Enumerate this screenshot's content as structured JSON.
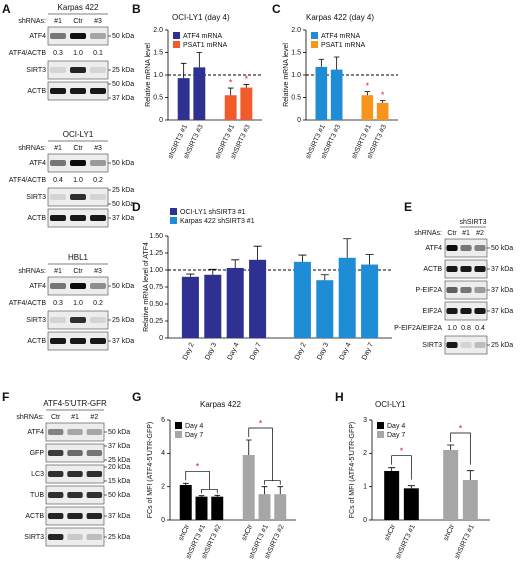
{
  "panel_labels": [
    "A",
    "B",
    "C",
    "D",
    "E",
    "F",
    "G",
    "H"
  ],
  "chart_data": [
    {
      "type": "bar",
      "title": "OCI-LY1 (day 4)",
      "y_label": "Relative mRNA level",
      "categories": [
        "shSIRT3 #1",
        "shSIRT3 #3"
      ],
      "series": [
        {
          "name": "ATF4 mRNA",
          "color": "#2e3192",
          "values": [
            0.93,
            1.17
          ],
          "errors": [
            0.33,
            0.33
          ]
        },
        {
          "name": "PSAT1 mRNA",
          "color": "#f15a29",
          "values": [
            0.55,
            0.72
          ],
          "errors": [
            0.16,
            0.07
          ],
          "annotations": [
            "*",
            "*"
          ]
        }
      ],
      "ylim": [
        0,
        2
      ],
      "yticks": [
        0,
        0.5,
        {
          "value": 1,
          "label": "1.0"
        },
        1.5,
        {
          "value": 2,
          "label": "2.0"
        }
      ],
      "reference_line": 1,
      "legend": "upper left"
    },
    {
      "type": "bar",
      "title": "Karpas 422 (day 4)",
      "y_label": "Relative mRNA level",
      "categories": [
        "shSIRT3 #1",
        "shSIRT3 #3"
      ],
      "series": [
        {
          "name": "ATF4 mRNA",
          "color": "#1f8dd6",
          "values": [
            1.18,
            1.12
          ],
          "errors": [
            0.17,
            0.28
          ]
        },
        {
          "name": "PSAT1 mRNA",
          "color": "#f7941d",
          "values": [
            0.55,
            0.38
          ],
          "errors": [
            0.08,
            0.05
          ],
          "annotations": [
            "*",
            "*"
          ]
        }
      ],
      "ylim": [
        0,
        2
      ],
      "yticks": [
        0,
        0.5,
        {
          "value": 1,
          "label": "1.0"
        },
        1.5,
        {
          "value": 2,
          "label": "2.0"
        }
      ],
      "reference_line": 1,
      "legend": "upper left"
    },
    {
      "type": "bar",
      "y_label": "Relative mRNA level of ATF4",
      "categories": [
        "Day 2",
        "Day 3",
        "Day 4",
        "Day 7"
      ],
      "series": [
        {
          "name": "OCI-LY1 shSIRT3 #1",
          "color": "#2e3192",
          "values": [
            0.9,
            0.93,
            1.03,
            1.15
          ],
          "errors": [
            0.04,
            0.08,
            0.12,
            0.2
          ]
        },
        {
          "name": "Karpas 422 shSIRT3 #1",
          "color": "#1f8dd6",
          "values": [
            1.12,
            0.85,
            1.18,
            1.08
          ],
          "errors": [
            0.1,
            0.08,
            0.28,
            0.15
          ]
        }
      ],
      "ylim": [
        0,
        1.5
      ],
      "yticks": [
        0,
        0.25,
        {
          "value": 0.5,
          "label": "0.50"
        },
        0.75,
        {
          "value": 1,
          "label": "1.00"
        },
        1.25,
        {
          "value": 1.5,
          "label": "1.50"
        }
      ],
      "reference_line": 1,
      "legend": "above"
    },
    {
      "type": "bar",
      "title": "Karpas 422",
      "y_label": "FCs of MFI (ATF4-5'UTR-GFP)",
      "categories": [
        "shCtr",
        "shSIRT3 #1",
        "shSIRT3 #2"
      ],
      "series": [
        {
          "name": "Day 4",
          "color": "#000000",
          "values": [
            2.1,
            1.4,
            1.4
          ],
          "errors": [
            0.1,
            0.06,
            0.08
          ],
          "bracket": "*"
        },
        {
          "name": "Day 7",
          "color": "#a6a6a6",
          "values": [
            3.9,
            1.55,
            1.55
          ],
          "errors": [
            0.9,
            0.45,
            0.45
          ],
          "bracket": "*"
        }
      ],
      "ylim": [
        0,
        6
      ],
      "yticks": [
        0,
        2,
        4,
        6
      ],
      "legend": "upper left"
    },
    {
      "type": "bar",
      "title": "OCI-LY1",
      "y_label": "FCs of MFI (ATF4-5'UTR-GFP)",
      "categories": [
        "shCtr",
        "shSIRT3 #1"
      ],
      "series": [
        {
          "name": "Day 4",
          "color": "#000000",
          "values": [
            1.47,
            0.95
          ],
          "errors": [
            0.1,
            0.08
          ],
          "bracket": "*"
        },
        {
          "name": "Day 7",
          "color": "#a6a6a6",
          "values": [
            2.1,
            1.2
          ],
          "errors": [
            0.15,
            0.28
          ],
          "bracket": "*"
        }
      ],
      "ylim": [
        0,
        3
      ],
      "yticks": [
        0,
        1,
        2,
        3
      ],
      "legend": "upper left"
    }
  ],
  "blots": [
    {
      "title": "Karpas 422",
      "lane_header": "shRNAs:",
      "lanes": [
        "#1",
        "Ctr",
        "#3"
      ],
      "rows": [
        {
          "label": "ATF4",
          "markers": [
            "50 kDa"
          ],
          "bands": [
            0.5,
            0.95,
            0.3
          ]
        },
        {
          "label": "ATF4/ACTB",
          "ratios": [
            "0.3",
            "1.0",
            "0.1"
          ]
        },
        {
          "label": "SIRT3",
          "markers": [
            "25 kDa"
          ],
          "bands": [
            0.1,
            0.85,
            0.1
          ]
        },
        {
          "label": "ACTB",
          "markers": [
            "50 kDa",
            "37 kDa"
          ],
          "bands": [
            0.9,
            0.9,
            0.9
          ]
        }
      ]
    },
    {
      "title": "OCI-LY1",
      "lane_header": "shRNAs:",
      "lanes": [
        "#1",
        "Ctr",
        "#3"
      ],
      "rows": [
        {
          "label": "ATF4",
          "markers": [
            "50 kDa"
          ],
          "bands": [
            0.5,
            0.95,
            0.35
          ]
        },
        {
          "label": "ATF4/ACTB",
          "ratios": [
            "0.4",
            "1.0",
            "0.2"
          ]
        },
        {
          "label": "SIRT3",
          "markers": [
            "25 kDa",
            "50 kDa"
          ],
          "bands": [
            0.1,
            0.8,
            0.1
          ]
        },
        {
          "label": "ACTB",
          "markers": [
            "37 kDa"
          ],
          "bands": [
            0.9,
            0.9,
            0.9
          ]
        }
      ]
    },
    {
      "title": "HBL1",
      "lane_header": "shRNAs:",
      "lanes": [
        "#1",
        "Ctr",
        "#3"
      ],
      "rows": [
        {
          "label": "ATF4",
          "markers": [
            "50 kDa"
          ],
          "bands": [
            0.5,
            0.95,
            0.4
          ]
        },
        {
          "label": "ATF4/ACTB",
          "ratios": [
            "0.3",
            "1.0",
            "0.2"
          ]
        },
        {
          "label": "SIRT3",
          "markers": [
            "25 kDa"
          ],
          "bands": [
            0.1,
            0.8,
            0.1
          ]
        },
        {
          "label": "ACTB",
          "markers": [
            "37 kDa"
          ],
          "bands": [
            0.9,
            0.9,
            0.9
          ]
        }
      ]
    },
    {
      "group_label": "shSIRT3",
      "lane_header": "shRNAs:",
      "lanes": [
        "Ctr",
        "#1",
        "#2"
      ],
      "rows": [
        {
          "label": "ATF4",
          "markers": [
            "50 kDa"
          ],
          "bands": [
            0.95,
            0.5,
            0.45
          ]
        },
        {
          "label": "ACTB",
          "markers": [
            "37 kDa"
          ],
          "bands": [
            0.9,
            0.9,
            0.9
          ]
        },
        {
          "label": "P-EIF2A",
          "markers": [
            "37 kDa"
          ],
          "bands": [
            0.6,
            0.5,
            0.35
          ]
        },
        {
          "label": "EIF2A",
          "markers": [
            "37 kDa"
          ],
          "bands": [
            0.9,
            0.9,
            0.9
          ]
        },
        {
          "label": "P-EIF2A/EIF2A",
          "ratios": [
            "1.0",
            "0.8",
            "0.4"
          ]
        },
        {
          "label": "SIRT3",
          "markers": [
            "25 kDa"
          ],
          "bands": [
            0.9,
            0.1,
            0.2
          ]
        }
      ]
    },
    {
      "title": "ATF4-5'UTR-GFR",
      "lane_header": "shRNAs:",
      "lanes": [
        "Ctr",
        "#1",
        "#2"
      ],
      "rows": [
        {
          "label": "ATF4",
          "markers": [
            "50 kDa"
          ],
          "bands": [
            0.45,
            0.3,
            0.3
          ]
        },
        {
          "label": "GFP",
          "markers": [
            "37 kDa",
            "25 kDa"
          ],
          "bands": [
            0.75,
            0.55,
            0.5
          ]
        },
        {
          "label": "LC3",
          "markers": [
            "20 kDa",
            "15 kDa"
          ],
          "bands": [
            0.8,
            0.8,
            0.8
          ]
        },
        {
          "label": "TUB",
          "markers": [
            "50 kDa"
          ],
          "bands": [
            0.8,
            0.8,
            0.8
          ]
        },
        {
          "label": "ACTB",
          "markers": [
            "37 kDa"
          ],
          "bands": [
            0.85,
            0.85,
            0.85
          ]
        },
        {
          "label": "SIRT3",
          "markers": [
            "25 kDa"
          ],
          "bands": [
            0.85,
            0.15,
            0.2
          ]
        }
      ]
    }
  ]
}
